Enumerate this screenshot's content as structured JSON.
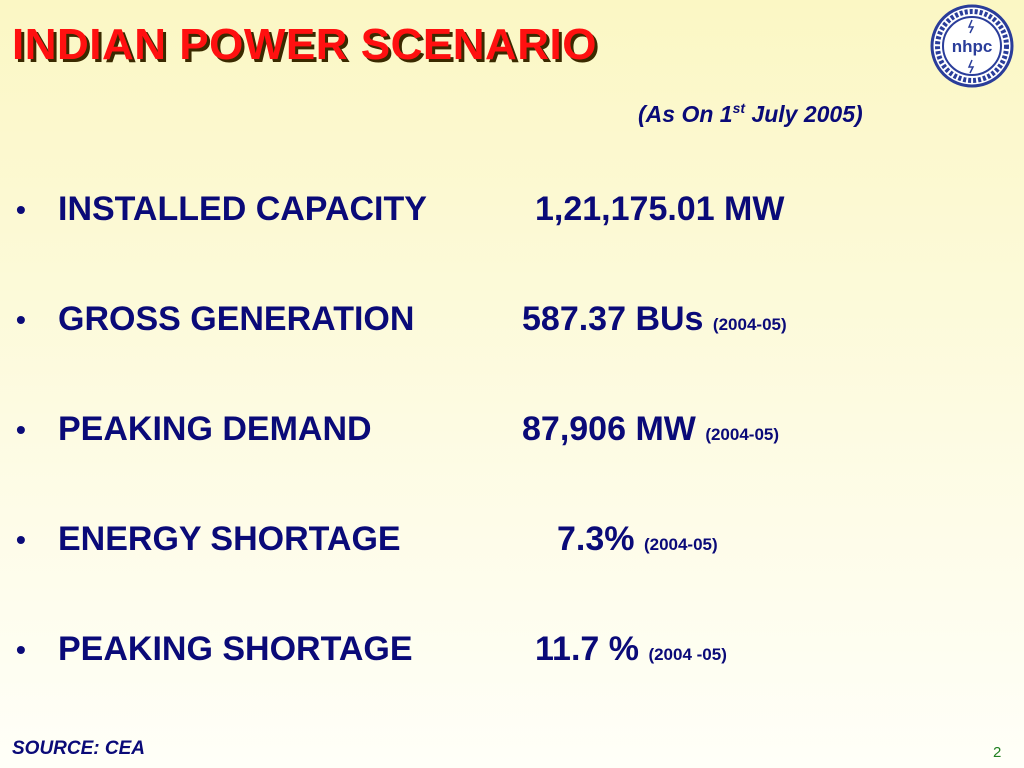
{
  "header": {
    "title": "INDIAN POWER SCENARIO",
    "subtitle": {
      "before": "(As On 1",
      "sup": "st",
      "after": " July 2005)"
    },
    "logo": "nhpc"
  },
  "items": [
    {
      "label": "INSTALLED CAPACITY",
      "value": "1,21,175.01 MW"
    },
    {
      "label": "GROSS GENERATION",
      "value": "587.37 BUs",
      "period": "(2004-05)"
    },
    {
      "label": "PEAKING DEMAND",
      "value": "87,906 MW",
      "period": "(2004-05)"
    },
    {
      "label": "ENERGY SHORTAGE",
      "value": "7.3%",
      "period": "(2004-05)"
    },
    {
      "label": "PEAKING SHORTAGE",
      "value": "11.7 %",
      "period": "(2004 -05)"
    }
  ],
  "footer": {
    "source": "SOURCE: CEA",
    "page": "2"
  }
}
